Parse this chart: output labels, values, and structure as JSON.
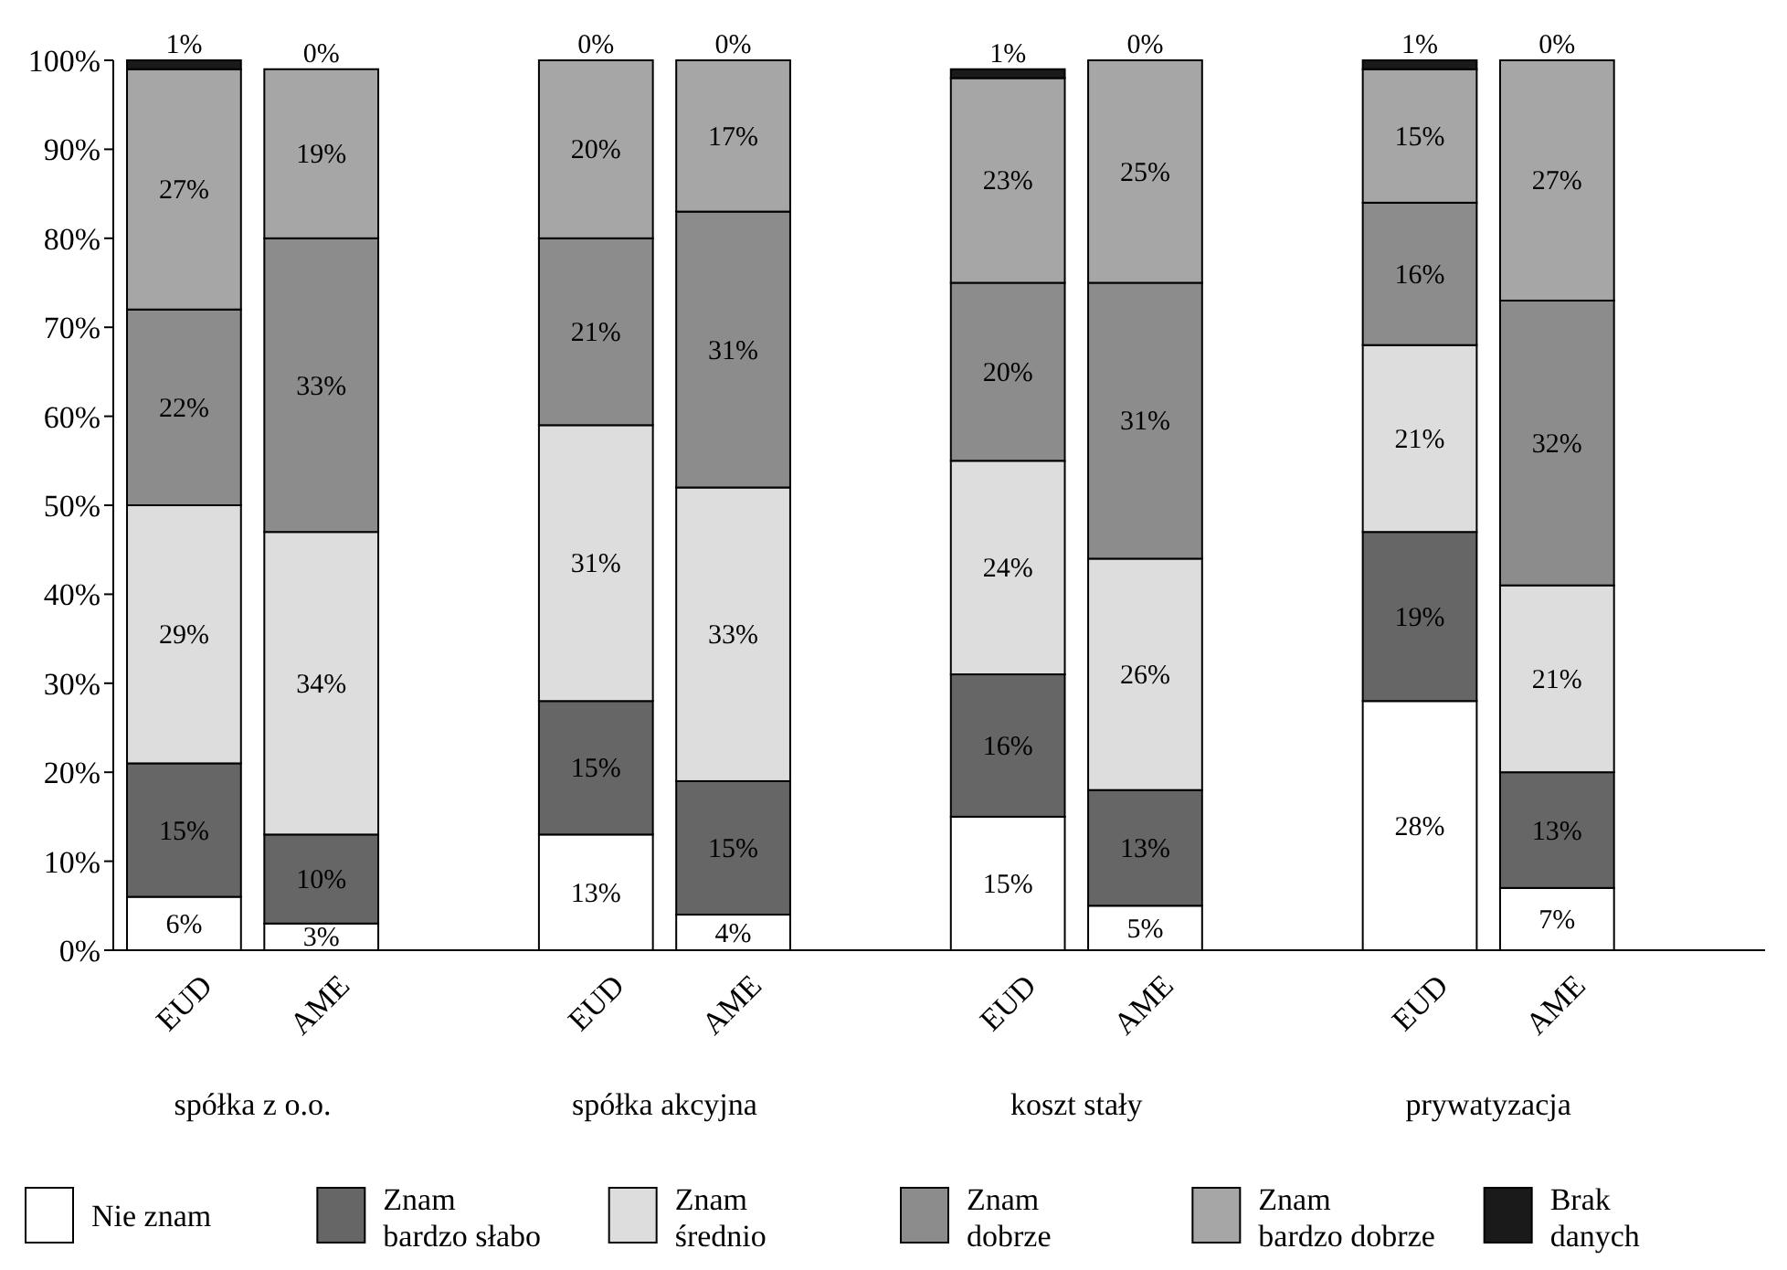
{
  "chart_data": {
    "type": "bar",
    "stacked": true,
    "categories": [
      "EUD",
      "AME",
      null,
      "EUD",
      "AME",
      null,
      "EUD",
      "AME",
      null,
      "EUD",
      "AME",
      null
    ],
    "annotations": [
      "spółka z o.o.",
      "spółka akcyjna",
      "koszt stały",
      "prywatyzacja"
    ],
    "ylim": [
      0,
      100
    ],
    "yticks": [
      {
        "value": 0,
        "label": "0%"
      },
      {
        "value": 10,
        "label": "10%"
      },
      {
        "value": 20,
        "label": "20%"
      },
      {
        "value": 30,
        "label": "30%"
      },
      {
        "value": 40,
        "label": "40%"
      },
      {
        "value": 50,
        "label": "50%"
      },
      {
        "value": 60,
        "label": "60%"
      },
      {
        "value": 70,
        "label": "70%"
      },
      {
        "value": 80,
        "label": "80%"
      },
      {
        "value": 90,
        "label": "90%"
      },
      {
        "value": 100,
        "label": "100%"
      }
    ],
    "grid": false,
    "legend": "bottom",
    "series": [
      {
        "name": "Nie znam",
        "color": "#ffffff",
        "values": [
          6,
          3,
          null,
          13,
          4,
          null,
          15,
          5,
          null,
          28,
          7,
          null
        ],
        "value_labels": [
          "6%",
          "3%",
          null,
          "13%",
          "4%",
          null,
          "15%",
          "5%",
          null,
          "28%",
          "7%",
          null
        ]
      },
      {
        "name": "Znam\nbardzo słabo",
        "color": "#666666",
        "values": [
          15,
          10,
          null,
          15,
          15,
          null,
          16,
          13,
          null,
          19,
          13,
          null
        ],
        "value_labels": [
          "15%",
          "10%",
          null,
          "15%",
          "15%",
          null,
          "16%",
          "13%",
          null,
          "19%",
          "13%",
          null
        ]
      },
      {
        "name": "Znam\nśrednio",
        "color": "#dddddd",
        "values": [
          29,
          34,
          null,
          31,
          33,
          null,
          24,
          26,
          null,
          21,
          21,
          null
        ],
        "value_labels": [
          "29%",
          "34%",
          null,
          "31%",
          "33%",
          null,
          "24%",
          "26%",
          null,
          "21%",
          "21%",
          null
        ]
      },
      {
        "name": "Znam\ndobrze",
        "color": "#8c8c8c",
        "values": [
          22,
          33,
          null,
          21,
          31,
          null,
          20,
          31,
          null,
          16,
          32,
          null
        ],
        "value_labels": [
          "22%",
          "33%",
          null,
          "21%",
          "31%",
          null,
          "20%",
          "31%",
          null,
          "16%",
          "32%",
          null
        ]
      },
      {
        "name": "Znam\nbardzo dobrze",
        "color": "#a6a6a6",
        "values": [
          27,
          19,
          null,
          20,
          17,
          null,
          23,
          25,
          null,
          15,
          27,
          null
        ],
        "value_labels": [
          "27%",
          "19%",
          null,
          "20%",
          "17%",
          null,
          "23%",
          "25%",
          null,
          "15%",
          "27%",
          null
        ]
      },
      {
        "name": "Brak\ndanych",
        "color": "#1a1a1a",
        "values": [
          1,
          0,
          null,
          0,
          0,
          null,
          1,
          0,
          null,
          1,
          0,
          null
        ],
        "value_labels": [
          "1%",
          "0%",
          null,
          "0%",
          "0%",
          null,
          "1%",
          "0%",
          null,
          "1%",
          "0%",
          null
        ]
      }
    ]
  }
}
